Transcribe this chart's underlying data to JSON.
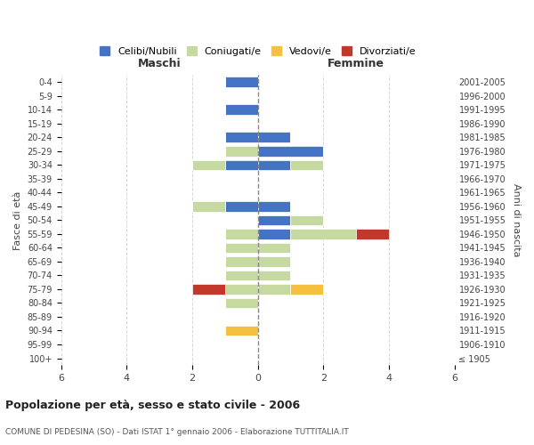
{
  "age_groups": [
    "100+",
    "95-99",
    "90-94",
    "85-89",
    "80-84",
    "75-79",
    "70-74",
    "65-69",
    "60-64",
    "55-59",
    "50-54",
    "45-49",
    "40-44",
    "35-39",
    "30-34",
    "25-29",
    "20-24",
    "15-19",
    "10-14",
    "5-9",
    "0-4"
  ],
  "birth_years": [
    "≤ 1905",
    "1906-1910",
    "1911-1915",
    "1916-1920",
    "1921-1925",
    "1926-1930",
    "1931-1935",
    "1936-1940",
    "1941-1945",
    "1946-1950",
    "1951-1955",
    "1956-1960",
    "1961-1965",
    "1966-1970",
    "1971-1975",
    "1976-1980",
    "1981-1985",
    "1986-1990",
    "1991-1995",
    "1996-2000",
    "2001-2005"
  ],
  "maschi": {
    "celibe": [
      0,
      0,
      0,
      0,
      0,
      0,
      0,
      0,
      0,
      0,
      0,
      1,
      0,
      0,
      1,
      0,
      1,
      0,
      1,
      0,
      1
    ],
    "coniugato": [
      0,
      0,
      0,
      0,
      1,
      1,
      1,
      1,
      1,
      1,
      0,
      1,
      0,
      0,
      1,
      1,
      0,
      0,
      0,
      0,
      0
    ],
    "vedovo": [
      0,
      0,
      1,
      0,
      0,
      0,
      0,
      0,
      0,
      0,
      0,
      0,
      0,
      0,
      0,
      0,
      0,
      0,
      0,
      0,
      0
    ],
    "divorziato": [
      0,
      0,
      0,
      0,
      0,
      1,
      0,
      0,
      0,
      0,
      0,
      0,
      0,
      0,
      0,
      0,
      0,
      0,
      0,
      0,
      0
    ]
  },
  "femmine": {
    "celibe": [
      0,
      0,
      0,
      0,
      0,
      0,
      0,
      0,
      0,
      1,
      1,
      1,
      0,
      0,
      1,
      2,
      1,
      0,
      0,
      0,
      0
    ],
    "coniugata": [
      0,
      0,
      0,
      0,
      0,
      1,
      1,
      1,
      1,
      2,
      1,
      0,
      0,
      0,
      1,
      0,
      0,
      0,
      0,
      0,
      0
    ],
    "vedova": [
      0,
      0,
      0,
      0,
      0,
      1,
      0,
      0,
      0,
      0,
      0,
      0,
      0,
      0,
      0,
      0,
      0,
      0,
      0,
      0,
      0
    ],
    "divorziata": [
      0,
      0,
      0,
      0,
      0,
      0,
      0,
      0,
      0,
      1,
      0,
      0,
      0,
      0,
      0,
      0,
      0,
      0,
      0,
      0,
      0
    ]
  },
  "colors": {
    "celibe": "#4472c4",
    "coniugato": "#c5d9a0",
    "vedovo": "#f5c040",
    "divorziato": "#c0392b"
  },
  "xlim": 6,
  "title": "Popolazione per età, sesso e stato civile - 2006",
  "subtitle": "COMUNE DI PEDESINA (SO) - Dati ISTAT 1° gennaio 2006 - Elaborazione TUTTITALIA.IT",
  "ylabel_left": "Fasce di età",
  "ylabel_right": "Anni di nascita",
  "xlabel_left": "Maschi",
  "xlabel_right": "Femmine",
  "legend_labels": [
    "Celibi/Nubili",
    "Coniugati/e",
    "Vedovi/e",
    "Divorziati/e"
  ],
  "bg_color": "#ffffff",
  "grid_color": "#cccccc"
}
